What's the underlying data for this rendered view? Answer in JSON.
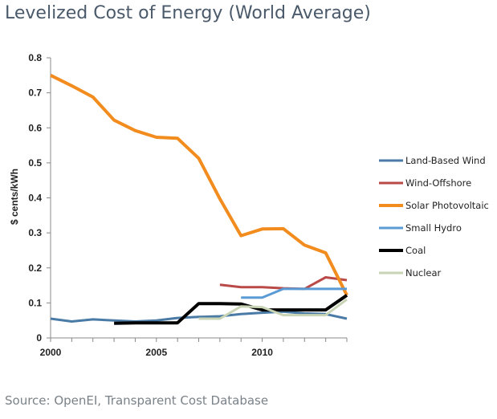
{
  "title": "Levelized Cost of Energy (World Average)",
  "source": "Source: OpenEI, Transparent Cost Database",
  "chart_data": {
    "type": "line",
    "title": "Levelized Cost of Energy (World Average)",
    "xlabel": "",
    "ylabel": "$ cents/kWh",
    "xlim": [
      2000,
      2014
    ],
    "ylim": [
      0,
      0.8
    ],
    "xticks": [
      2000,
      2005,
      2010
    ],
    "yticks": [
      "0",
      "0.1",
      "0.2",
      "0.3",
      "0.4",
      "0.5",
      "0.6",
      "0.7",
      "0.8"
    ],
    "grid": false,
    "legend_position": "right",
    "series": [
      {
        "name": "Land-Based Wind",
        "color": "#4a7ba6",
        "width": 3,
        "x": [
          2000,
          2001,
          2002,
          2003,
          2004,
          2005,
          2006,
          2007,
          2008,
          2009,
          2010,
          2011,
          2012,
          2013,
          2014
        ],
        "y": [
          0.055,
          0.047,
          0.053,
          0.05,
          0.047,
          0.05,
          0.057,
          0.06,
          0.062,
          0.068,
          0.072,
          0.075,
          0.07,
          0.068,
          0.055
        ]
      },
      {
        "name": "Wind-Offshore",
        "color": "#b94a48",
        "width": 3,
        "x": [
          2008,
          2009,
          2010,
          2011,
          2012,
          2013,
          2014
        ],
        "y": [
          0.152,
          0.145,
          0.145,
          0.142,
          0.14,
          0.173,
          0.165
        ]
      },
      {
        "name": "Solar Photovoltaic",
        "color": "#f28c1e",
        "width": 4,
        "x": [
          2000,
          2001,
          2002,
          2003,
          2004,
          2005,
          2006,
          2007,
          2008,
          2009,
          2010,
          2011,
          2012,
          2013,
          2014
        ],
        "y": [
          0.75,
          0.72,
          0.688,
          0.622,
          0.592,
          0.573,
          0.57,
          0.513,
          0.397,
          0.292,
          0.311,
          0.312,
          0.265,
          0.243,
          0.122
        ]
      },
      {
        "name": "Small Hydro",
        "color": "#5b9bd5",
        "width": 3,
        "x": [
          2009,
          2010,
          2011,
          2012,
          2013,
          2014
        ],
        "y": [
          0.115,
          0.115,
          0.14,
          0.14,
          0.14,
          0.14
        ]
      },
      {
        "name": "Coal",
        "color": "#000000",
        "width": 4,
        "x": [
          2003,
          2004,
          2005,
          2006,
          2007,
          2008,
          2009,
          2010,
          2011,
          2012,
          2013,
          2014
        ],
        "y": [
          0.042,
          0.043,
          0.043,
          0.043,
          0.098,
          0.098,
          0.097,
          0.08,
          0.08,
          0.08,
          0.08,
          0.122
        ]
      },
      {
        "name": "Nuclear",
        "color": "#c8d4b4",
        "width": 3,
        "x": [
          2007,
          2008,
          2009,
          2010,
          2011,
          2012,
          2013,
          2014
        ],
        "y": [
          0.055,
          0.055,
          0.09,
          0.088,
          0.065,
          0.065,
          0.065,
          0.11
        ]
      }
    ]
  }
}
